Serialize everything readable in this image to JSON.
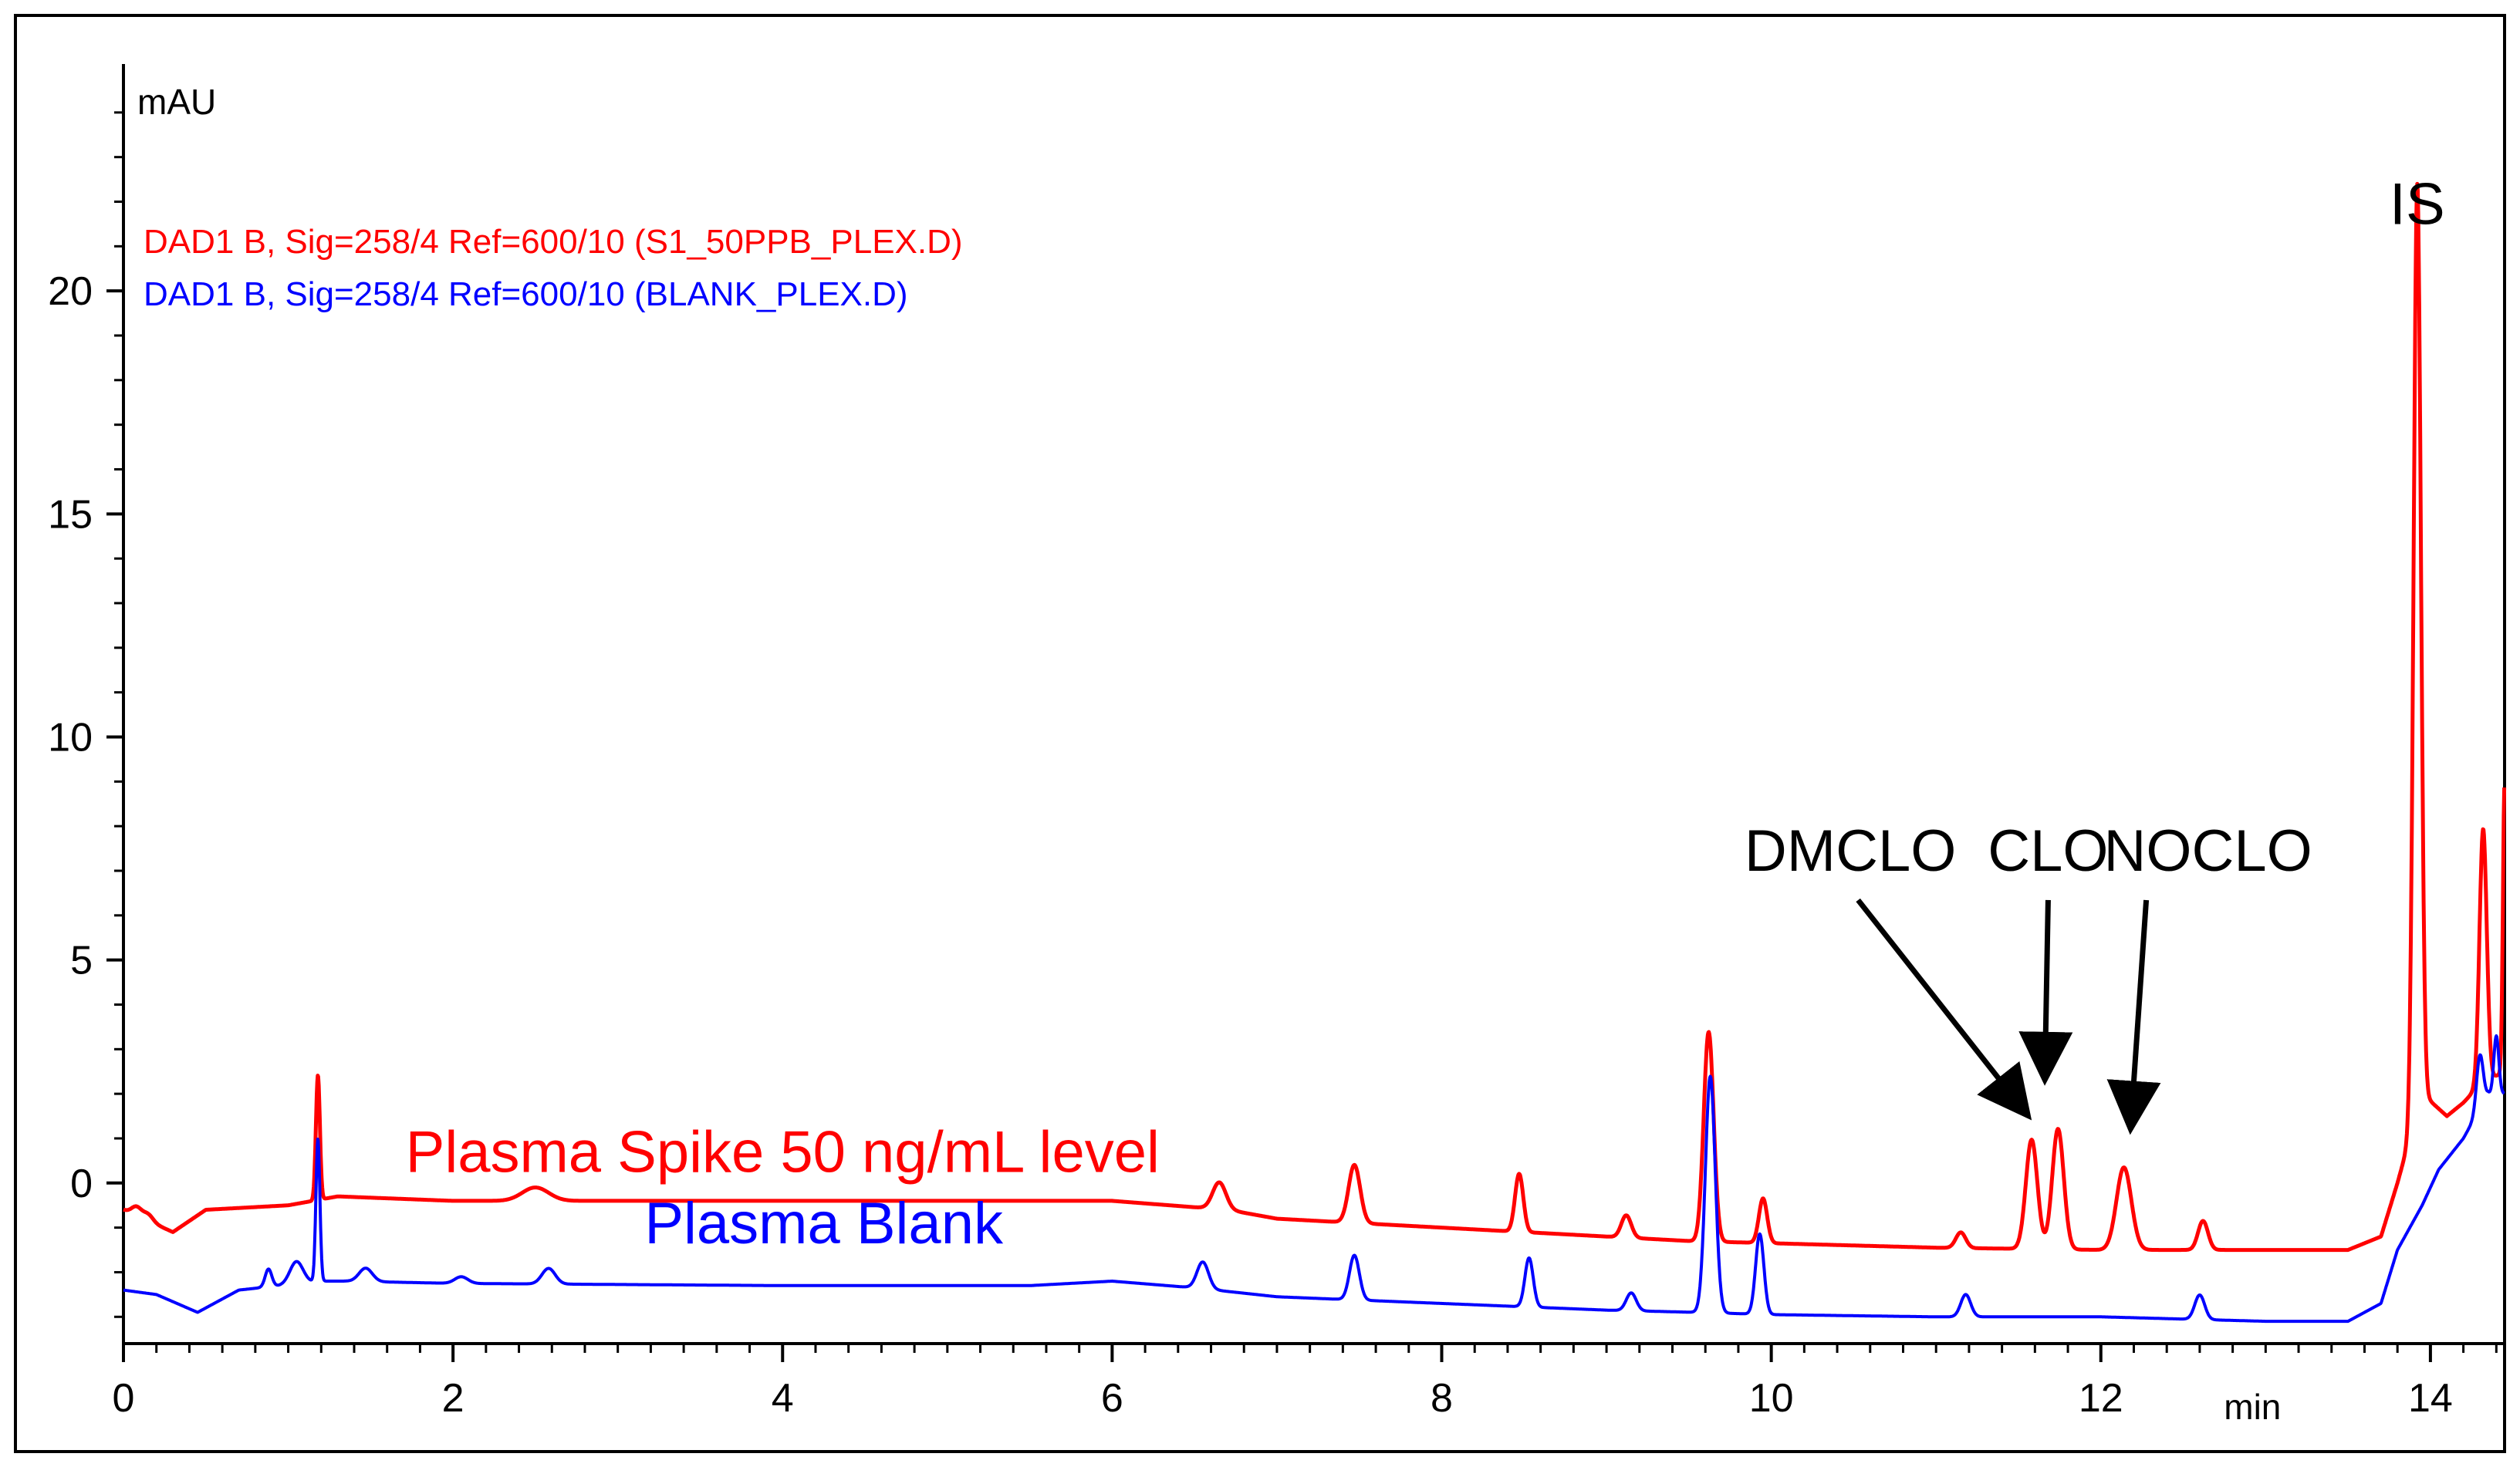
{
  "chart_data": {
    "type": "line",
    "title": "",
    "xlabel": "min",
    "ylabel": "mAU",
    "xlim": [
      0,
      14.45
    ],
    "ylim": [
      -3.6,
      25
    ],
    "x_ticks": [
      0,
      2,
      4,
      6,
      8,
      10,
      12,
      14
    ],
    "y_ticks": [
      0,
      5,
      10,
      15,
      20
    ],
    "x_tick_labels": [
      "0",
      "2",
      "4",
      "6",
      "8",
      "10",
      "12",
      "14"
    ],
    "y_tick_labels": [
      "0",
      "5",
      "10",
      "15",
      "20"
    ],
    "grid": false,
    "legend": [
      {
        "text": "DAD1 B, Sig=258/4 Ref=600/10 (S1_50PPB_PLEX.D)",
        "color": "#ff0000"
      },
      {
        "text": "DAD1 B, Sig=258/4 Ref=600/10 (BLANK_PLEX.D)",
        "color": "#0000ff"
      }
    ],
    "series": [
      {
        "name": "Plasma Spike 50 ng/mL level",
        "color": "#ff0000",
        "baseline": [
          [
            0,
            -0.6
          ],
          [
            0.3,
            -1.1
          ],
          [
            0.5,
            -0.6
          ],
          [
            1.0,
            -0.5
          ],
          [
            1.3,
            -0.3
          ],
          [
            2.0,
            -0.4
          ],
          [
            3.0,
            -0.4
          ],
          [
            4.0,
            -0.4
          ],
          [
            5.0,
            -0.4
          ],
          [
            6.0,
            -0.4
          ],
          [
            6.7,
            -0.6
          ],
          [
            7.0,
            -0.8
          ],
          [
            8.0,
            -1.0
          ],
          [
            9.0,
            -1.2
          ],
          [
            9.5,
            -1.3
          ],
          [
            10.0,
            -1.35
          ],
          [
            11.0,
            -1.45
          ],
          [
            12.0,
            -1.5
          ],
          [
            13.0,
            -1.5
          ],
          [
            13.5,
            -1.5
          ],
          [
            13.7,
            -1.2
          ],
          [
            13.8,
            0
          ],
          [
            13.95,
            2.0
          ],
          [
            14.1,
            1.5
          ],
          [
            14.2,
            1.8
          ],
          [
            14.3,
            2.2
          ],
          [
            14.45,
            2.5
          ]
        ],
        "peaks": [
          [
            0.08,
            0.2,
            0.03
          ],
          [
            0.15,
            0.15,
            0.03
          ],
          [
            1.18,
            2.8,
            0.012
          ],
          [
            2.5,
            0.3,
            0.08
          ],
          [
            6.65,
            0.6,
            0.04
          ],
          [
            7.47,
            1.3,
            0.035
          ],
          [
            8.47,
            1.3,
            0.025
          ],
          [
            9.12,
            0.5,
            0.03
          ],
          [
            9.62,
            4.7,
            0.03
          ],
          [
            9.95,
            1.0,
            0.025
          ],
          [
            11.15,
            0.35,
            0.03
          ],
          [
            11.58,
            2.45,
            0.035
          ],
          [
            11.74,
            2.7,
            0.035
          ],
          [
            12.14,
            1.85,
            0.045
          ],
          [
            12.62,
            0.65,
            0.03
          ],
          [
            13.92,
            20.8,
            0.022
          ],
          [
            14.32,
            5.7,
            0.022
          ],
          [
            14.45,
            6.5,
            0.01
          ]
        ]
      },
      {
        "name": "Plasma Blank",
        "color": "#0000ff",
        "baseline": [
          [
            0,
            -2.4
          ],
          [
            0.2,
            -2.5
          ],
          [
            0.45,
            -2.9
          ],
          [
            0.7,
            -2.4
          ],
          [
            1.2,
            -2.2
          ],
          [
            1.35,
            -2.2
          ],
          [
            2.0,
            -2.25
          ],
          [
            4.0,
            -2.3
          ],
          [
            5.5,
            -2.3
          ],
          [
            6.0,
            -2.2
          ],
          [
            6.5,
            -2.35
          ],
          [
            7.0,
            -2.55
          ],
          [
            8.0,
            -2.7
          ],
          [
            9.0,
            -2.85
          ],
          [
            9.55,
            -2.9
          ],
          [
            10.0,
            -2.95
          ],
          [
            11.0,
            -3.0
          ],
          [
            12.0,
            -3.0
          ],
          [
            13.0,
            -3.1
          ],
          [
            13.5,
            -3.1
          ],
          [
            13.7,
            -2.7
          ],
          [
            13.8,
            -1.5
          ],
          [
            13.95,
            -0.5
          ],
          [
            14.05,
            0.3
          ],
          [
            14.2,
            1.0
          ],
          [
            14.35,
            2.0
          ],
          [
            14.45,
            2.0
          ]
        ],
        "peaks": [
          [
            0.88,
            0.4,
            0.02
          ],
          [
            1.05,
            0.5,
            0.04
          ],
          [
            1.18,
            3.2,
            0.012
          ],
          [
            1.47,
            0.3,
            0.04
          ],
          [
            2.05,
            0.15,
            0.04
          ],
          [
            2.58,
            0.35,
            0.04
          ],
          [
            6.55,
            0.6,
            0.035
          ],
          [
            7.47,
            1.0,
            0.03
          ],
          [
            8.53,
            1.1,
            0.025
          ],
          [
            9.15,
            0.4,
            0.03
          ],
          [
            9.63,
            5.3,
            0.03
          ],
          [
            9.93,
            1.8,
            0.025
          ],
          [
            11.18,
            0.5,
            0.03
          ],
          [
            12.6,
            0.55,
            0.03
          ],
          [
            14.3,
            1.2,
            0.02
          ],
          [
            14.4,
            1.3,
            0.015
          ]
        ]
      }
    ],
    "annotations": [
      {
        "text": "IS",
        "x": 13.92,
        "y": 21.5
      },
      {
        "text": "DMCLO",
        "x": 10.48,
        "y": 7.0,
        "arrow_to": [
          11.56,
          1.5
        ]
      },
      {
        "text": "CLO",
        "x": 11.68,
        "y": 7.0,
        "arrow_to": [
          11.66,
          2.3
        ]
      },
      {
        "text": "NOCLO",
        "x": 12.65,
        "y": 7.0,
        "arrow_to": [
          12.18,
          1.2
        ]
      },
      {
        "text": "Plasma Spike 50 ng/mL level",
        "x": 4.0,
        "y": 0.25,
        "color": "#ff0000"
      },
      {
        "text": "Plasma Blank",
        "x": 4.25,
        "y": -1.35,
        "color": "#0000ff"
      }
    ]
  }
}
